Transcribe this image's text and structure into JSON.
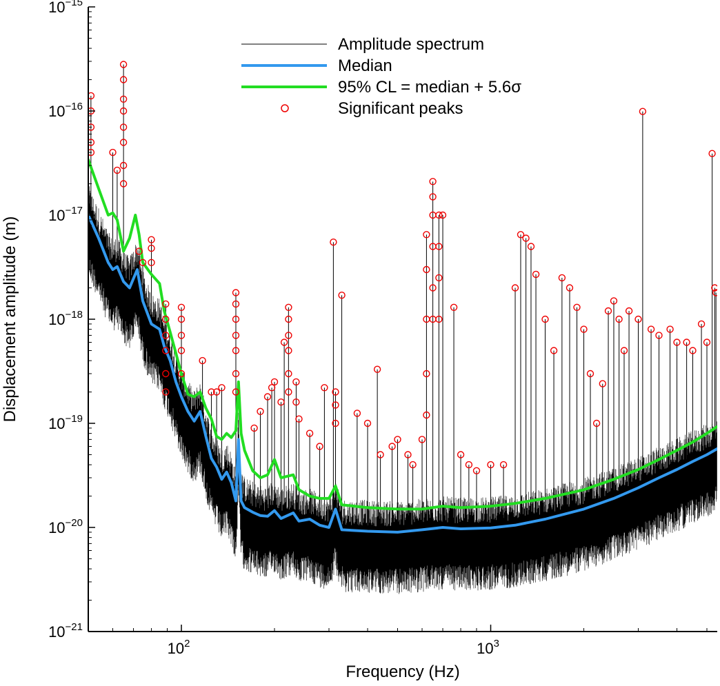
{
  "chart_data": {
    "type": "line",
    "xscale": "log",
    "yscale": "log",
    "xlim": [
      50,
      5400
    ],
    "ylim": [
      1e-21,
      1e-15
    ],
    "xlabel": "Frequency (Hz)",
    "ylabel": "Displacement amplitude (m)",
    "x_ticks": [
      {
        "value": 100,
        "base": "10",
        "exp": "2"
      },
      {
        "value": 1000,
        "base": "10",
        "exp": "3"
      }
    ],
    "y_ticks": [
      {
        "value": 1e-21,
        "base": "10",
        "exp": "−21"
      },
      {
        "value": 1e-20,
        "base": "10",
        "exp": "−20"
      },
      {
        "value": 1e-19,
        "base": "10",
        "exp": "−19"
      },
      {
        "value": 1e-18,
        "base": "10",
        "exp": "−18"
      },
      {
        "value": 1e-17,
        "base": "10",
        "exp": "−17"
      },
      {
        "value": 1e-16,
        "base": "10",
        "exp": "−16"
      },
      {
        "value": 1e-15,
        "base": "10",
        "exp": "−15"
      }
    ],
    "legend": {
      "position": "top-center",
      "entries": [
        {
          "label": "Amplitude spectrum",
          "kind": "thin-line",
          "color": "#000000"
        },
        {
          "label": "Median",
          "kind": "thick-line",
          "color": "#3399ee"
        },
        {
          "label": "95% CL = median + 5.6σ",
          "kind": "thick-line",
          "color": "#22dd22"
        },
        {
          "label": "Significant peaks",
          "kind": "circle",
          "color": "#ee0000"
        }
      ]
    },
    "series": [
      {
        "name": "Median",
        "color": "#3399ee",
        "points": [
          [
            50,
            1e-17
          ],
          [
            54,
            6e-18
          ],
          [
            58,
            3.5e-18
          ],
          [
            60,
            3e-18
          ],
          [
            62,
            3.2e-18
          ],
          [
            65,
            2.3e-18
          ],
          [
            68,
            2e-18
          ],
          [
            72,
            3e-18
          ],
          [
            75,
            1.5e-18
          ],
          [
            80,
            9e-19
          ],
          [
            85,
            8e-19
          ],
          [
            88,
            5.5e-19
          ],
          [
            92,
            4e-19
          ],
          [
            96,
            2.5e-19
          ],
          [
            100,
            1.8e-19
          ],
          [
            105,
            1.3e-19
          ],
          [
            110,
            1.05e-19
          ],
          [
            115,
            1.3e-19
          ],
          [
            120,
            7.5e-20
          ],
          [
            125,
            4.6e-20
          ],
          [
            130,
            3.8e-20
          ],
          [
            135,
            2.9e-20
          ],
          [
            140,
            3.4e-20
          ],
          [
            145,
            2.7e-20
          ],
          [
            150,
            1.8e-20
          ],
          [
            153,
            7e-20
          ],
          [
            156,
            1.8e-20
          ],
          [
            160,
            1.55e-20
          ],
          [
            170,
            1.4e-20
          ],
          [
            180,
            1.3e-20
          ],
          [
            190,
            1.28e-20
          ],
          [
            200,
            1.45e-20
          ],
          [
            210,
            1.22e-20
          ],
          [
            230,
            1.38e-20
          ],
          [
            240,
            1.15e-20
          ],
          [
            260,
            1.2e-20
          ],
          [
            280,
            1.05e-20
          ],
          [
            300,
            1e-20
          ],
          [
            315,
            1.5e-20
          ],
          [
            330,
            9.5e-21
          ],
          [
            400,
            9.2e-21
          ],
          [
            500,
            9e-21
          ],
          [
            600,
            9.5e-21
          ],
          [
            700,
            1e-20
          ],
          [
            800,
            9.7e-21
          ],
          [
            1000,
            9.9e-21
          ],
          [
            1200,
            1.05e-20
          ],
          [
            1500,
            1.2e-20
          ],
          [
            2000,
            1.5e-20
          ],
          [
            2500,
            1.9e-20
          ],
          [
            3000,
            2.4e-20
          ],
          [
            3500,
            3e-20
          ],
          [
            4000,
            3.6e-20
          ],
          [
            4500,
            4.3e-20
          ],
          [
            5000,
            5e-20
          ],
          [
            5400,
            5.7e-20
          ]
        ]
      },
      {
        "name": "95% CL = median + 5.6σ",
        "color": "#22dd22",
        "points": [
          [
            50,
            3.4e-17
          ],
          [
            54,
            1.8e-17
          ],
          [
            58,
            1e-17
          ],
          [
            60,
            1.05e-17
          ],
          [
            62,
            9e-18
          ],
          [
            65,
            4.5e-18
          ],
          [
            68,
            6e-18
          ],
          [
            71,
            1e-17
          ],
          [
            73,
            6.5e-18
          ],
          [
            75,
            3.5e-18
          ],
          [
            80,
            2.7e-18
          ],
          [
            85,
            2.2e-18
          ],
          [
            88,
            1.2e-18
          ],
          [
            92,
            7.5e-19
          ],
          [
            96,
            4.7e-19
          ],
          [
            100,
            3e-19
          ],
          [
            105,
            1.9e-19
          ],
          [
            110,
            1.8e-19
          ],
          [
            115,
            2e-19
          ],
          [
            120,
            1.4e-19
          ],
          [
            125,
            1.1e-19
          ],
          [
            130,
            7.5e-20
          ],
          [
            135,
            7e-20
          ],
          [
            140,
            8e-20
          ],
          [
            145,
            7.3e-20
          ],
          [
            150,
            8.5e-20
          ],
          [
            153,
            2.5e-19
          ],
          [
            156,
            8e-20
          ],
          [
            160,
            5.5e-20
          ],
          [
            170,
            3.5e-20
          ],
          [
            180,
            3e-20
          ],
          [
            190,
            3.2e-20
          ],
          [
            200,
            4.5e-20
          ],
          [
            210,
            3e-20
          ],
          [
            230,
            3.2e-20
          ],
          [
            240,
            2.3e-20
          ],
          [
            260,
            2e-20
          ],
          [
            280,
            1.9e-20
          ],
          [
            300,
            1.9e-20
          ],
          [
            315,
            2.5e-20
          ],
          [
            330,
            1.65e-20
          ],
          [
            400,
            1.55e-20
          ],
          [
            500,
            1.5e-20
          ],
          [
            600,
            1.5e-20
          ],
          [
            700,
            1.6e-20
          ],
          [
            800,
            1.55e-20
          ],
          [
            1000,
            1.6e-20
          ],
          [
            1200,
            1.7e-20
          ],
          [
            1500,
            1.9e-20
          ],
          [
            2000,
            2.3e-20
          ],
          [
            2500,
            2.9e-20
          ],
          [
            3000,
            3.6e-20
          ],
          [
            3500,
            4.5e-20
          ],
          [
            4000,
            5.5e-20
          ],
          [
            4500,
            6.6e-20
          ],
          [
            5000,
            8e-20
          ],
          [
            5400,
            9.3e-20
          ]
        ]
      },
      {
        "name": "Amplitude spectrum",
        "color": "#000000",
        "representation": "dense noisy spectrum filling the band below the median and CL curves, with tall narrow spikes at the significant peaks"
      },
      {
        "name": "Significant peaks",
        "color": "#ee0000",
        "marker": "open-circle",
        "points": [
          [
            51,
            1.4e-16
          ],
          [
            51,
            1e-16
          ],
          [
            51,
            7e-17
          ],
          [
            51,
            5e-17
          ],
          [
            51,
            4e-17
          ],
          [
            60,
            4e-17
          ],
          [
            62,
            2.7e-17
          ],
          [
            65,
            2.8e-16
          ],
          [
            65,
            2e-16
          ],
          [
            65,
            1.3e-16
          ],
          [
            65,
            1e-16
          ],
          [
            65,
            7e-17
          ],
          [
            65,
            5e-17
          ],
          [
            65,
            3e-17
          ],
          [
            65,
            2e-17
          ],
          [
            73,
            4.5e-18
          ],
          [
            75,
            3.5e-18
          ],
          [
            80,
            5.8e-18
          ],
          [
            80,
            4.8e-18
          ],
          [
            80,
            3.5e-18
          ],
          [
            89,
            1.4e-18
          ],
          [
            89,
            1e-18
          ],
          [
            89,
            7e-19
          ],
          [
            89,
            5e-19
          ],
          [
            89,
            3e-19
          ],
          [
            89,
            2e-19
          ],
          [
            100,
            1.3e-18
          ],
          [
            100,
            1e-18
          ],
          [
            100,
            7e-19
          ],
          [
            100,
            5e-19
          ],
          [
            100,
            3e-19
          ],
          [
            117,
            4e-19
          ],
          [
            125,
            2e-19
          ],
          [
            130,
            2e-19
          ],
          [
            135,
            2.2e-19
          ],
          [
            150,
            1.8e-18
          ],
          [
            150,
            1.4e-18
          ],
          [
            150,
            1e-18
          ],
          [
            150,
            7e-19
          ],
          [
            150,
            5e-19
          ],
          [
            150,
            3e-19
          ],
          [
            150,
            2e-19
          ],
          [
            172,
            9e-20
          ],
          [
            180,
            1.3e-19
          ],
          [
            190,
            1.8e-19
          ],
          [
            196,
            2.2e-19
          ],
          [
            200,
            2.5e-19
          ],
          [
            210,
            1.6e-19
          ],
          [
            215,
            6e-19
          ],
          [
            222,
            1.3e-18
          ],
          [
            222,
            1e-18
          ],
          [
            222,
            7e-19
          ],
          [
            222,
            5e-19
          ],
          [
            222,
            3e-19
          ],
          [
            222,
            2e-19
          ],
          [
            235,
            2.5e-19
          ],
          [
            235,
            1.6e-19
          ],
          [
            240,
            1.1e-19
          ],
          [
            260,
            8e-20
          ],
          [
            280,
            6e-20
          ],
          [
            290,
            2.2e-19
          ],
          [
            310,
            5.5e-18
          ],
          [
            315,
            2e-19
          ],
          [
            315,
            1.5e-19
          ],
          [
            315,
            1e-19
          ],
          [
            330,
            1.7e-18
          ],
          [
            370,
            1.25e-19
          ],
          [
            400,
            1e-19
          ],
          [
            430,
            3.3e-19
          ],
          [
            440,
            5e-20
          ],
          [
            480,
            6e-20
          ],
          [
            500,
            7e-20
          ],
          [
            540,
            5e-20
          ],
          [
            560,
            4e-20
          ],
          [
            600,
            7e-20
          ],
          [
            620,
            6.5e-18
          ],
          [
            620,
            3e-18
          ],
          [
            620,
            1e-18
          ],
          [
            620,
            3e-19
          ],
          [
            620,
            1.2e-19
          ],
          [
            650,
            2.1e-17
          ],
          [
            650,
            1.5e-17
          ],
          [
            650,
            1e-17
          ],
          [
            650,
            5e-18
          ],
          [
            650,
            2e-18
          ],
          [
            650,
            1e-18
          ],
          [
            680,
            1e-17
          ],
          [
            680,
            5e-18
          ],
          [
            680,
            2.5e-18
          ],
          [
            680,
            1e-18
          ],
          [
            700,
            1e-17
          ],
          [
            760,
            1.3e-18
          ],
          [
            800,
            5e-20
          ],
          [
            850,
            4e-20
          ],
          [
            900,
            3.5e-20
          ],
          [
            1000,
            4e-20
          ],
          [
            1100,
            4e-20
          ],
          [
            1200,
            2e-18
          ],
          [
            1250,
            6.5e-18
          ],
          [
            1300,
            6e-18
          ],
          [
            1350,
            5e-18
          ],
          [
            1400,
            2.7e-18
          ],
          [
            1500,
            1e-18
          ],
          [
            1600,
            5e-19
          ],
          [
            1700,
            2.5e-18
          ],
          [
            1800,
            2e-18
          ],
          [
            1900,
            1.3e-18
          ],
          [
            2000,
            8e-19
          ],
          [
            2100,
            3e-19
          ],
          [
            2200,
            1e-19
          ],
          [
            2300,
            2.4e-19
          ],
          [
            2400,
            1.2e-18
          ],
          [
            2500,
            1.5e-18
          ],
          [
            2600,
            1e-18
          ],
          [
            2700,
            5e-19
          ],
          [
            2800,
            1.2e-18
          ],
          [
            3000,
            1e-18
          ],
          [
            3100,
            9.9e-17
          ],
          [
            3300,
            8e-19
          ],
          [
            3500,
            7e-19
          ],
          [
            3800,
            8e-19
          ],
          [
            4000,
            6e-19
          ],
          [
            4300,
            6e-19
          ],
          [
            4500,
            5e-19
          ],
          [
            4800,
            9e-19
          ],
          [
            5000,
            6e-19
          ],
          [
            5200,
            3.9e-17
          ],
          [
            5300,
            2e-18
          ],
          [
            5350,
            1.8e-18
          ]
        ]
      }
    ]
  }
}
